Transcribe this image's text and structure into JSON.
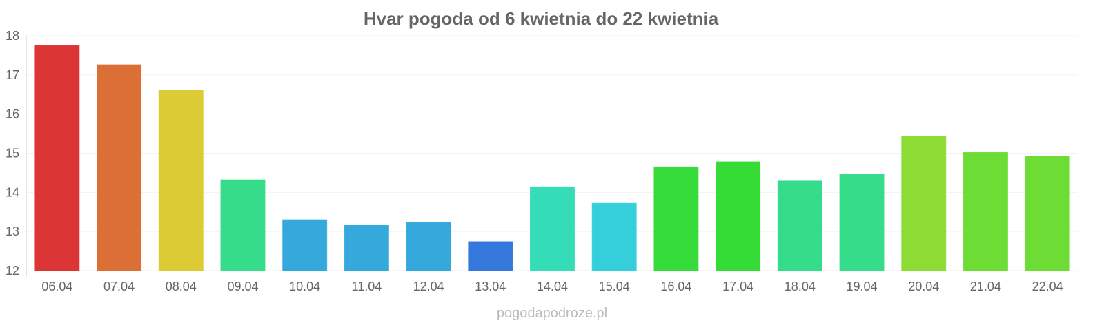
{
  "chart_data": {
    "type": "bar",
    "title": "Hvar pogoda od 6 kwietnia do 22 kwietnia",
    "xlabel": "",
    "ylabel": "",
    "ylim": [
      12,
      18
    ],
    "yticks": [
      "12",
      "13",
      "14",
      "15",
      "16",
      "17",
      "18"
    ],
    "grid": true,
    "categories": [
      "06.04",
      "07.04",
      "08.04",
      "09.04",
      "10.04",
      "11.04",
      "12.04",
      "13.04",
      "14.04",
      "15.04",
      "16.04",
      "17.04",
      "18.04",
      "19.04",
      "20.04",
      "21.04",
      "22.04"
    ],
    "values": [
      17.75,
      17.26,
      16.61,
      14.32,
      13.3,
      13.16,
      13.23,
      12.74,
      14.14,
      13.72,
      14.65,
      14.78,
      14.29,
      14.46,
      15.43,
      15.02,
      14.92
    ],
    "colors": [
      "#dc3535",
      "#dc6f35",
      "#dccb35",
      "#35dc8a",
      "#35a8dc",
      "#35a8dc",
      "#35a8dc",
      "#3578dc",
      "#35dcb8",
      "#35cfdc",
      "#35dc3a",
      "#35dc35",
      "#35dc8a",
      "#35dc8a",
      "#8cdc35",
      "#6ddc35",
      "#6ddc35"
    ]
  },
  "footer": "pogodapodroze.pl"
}
